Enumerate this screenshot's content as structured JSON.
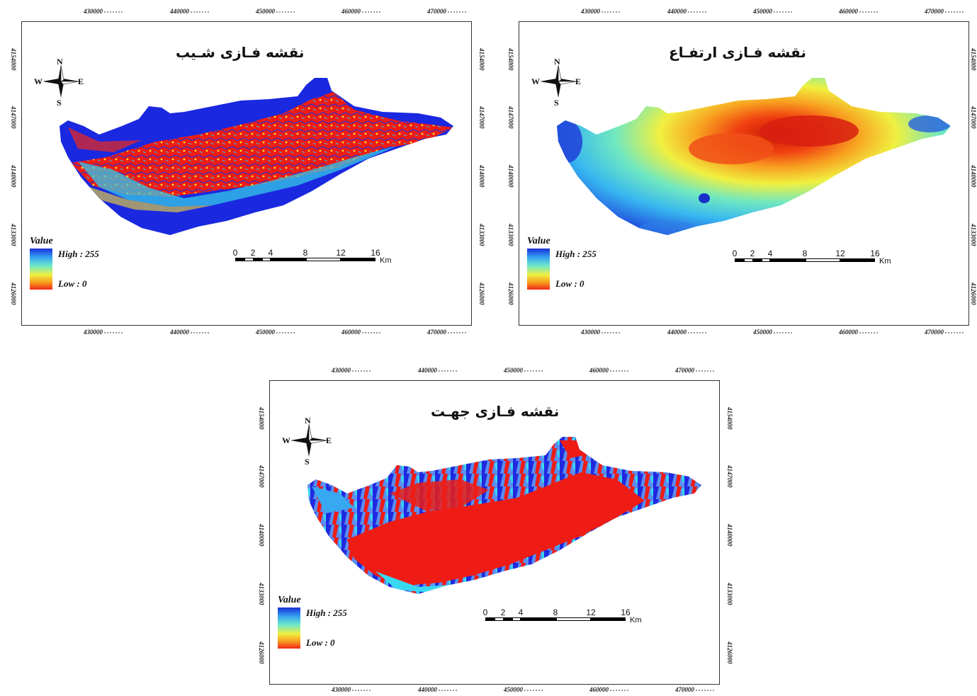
{
  "maps": [
    {
      "title": "نقشه فـازی شـیب",
      "type": "slope",
      "legend": {
        "title": "Value",
        "high": "High : 255",
        "low": "Low : 0"
      },
      "compass": {
        "n": "N",
        "s": "S",
        "e": "E",
        "w": "W"
      },
      "x_ticks": [
        "430000",
        "440000",
        "450000",
        "460000",
        "470000"
      ],
      "y_ticks": [
        "4154000",
        "4147000",
        "4140000",
        "4133000",
        "4126000"
      ],
      "scale": {
        "labels": [
          "0",
          "2",
          "4",
          "8",
          "12",
          "16"
        ],
        "unit": "Km"
      }
    },
    {
      "title": "نقشه فـازی ارتفـاع",
      "type": "elevation",
      "legend": {
        "title": "Value",
        "high": "High : 255",
        "low": "Low : 0"
      },
      "compass": {
        "n": "N",
        "s": "S",
        "e": "E",
        "w": "W"
      },
      "x_ticks": [
        "430000",
        "440000",
        "450000",
        "460000",
        "470000"
      ],
      "y_ticks": [
        "4154000",
        "4147000",
        "4140000",
        "4133000",
        "4126000"
      ],
      "scale": {
        "labels": [
          "0",
          "2",
          "4",
          "8",
          "12",
          "16"
        ],
        "unit": "Km"
      }
    },
    {
      "title": "نقشه فـازی جهـت",
      "type": "aspect",
      "legend": {
        "title": "Value",
        "high": "High : 255",
        "low": "Low : 0"
      },
      "compass": {
        "n": "N",
        "s": "S",
        "e": "E",
        "w": "W"
      },
      "x_ticks": [
        "430000",
        "440000",
        "450000",
        "460000",
        "470000"
      ],
      "y_ticks": [
        "4154000",
        "4147000",
        "4140000",
        "4133000",
        "4126000"
      ],
      "scale": {
        "labels": [
          "0",
          "2",
          "4",
          "8",
          "12",
          "16"
        ],
        "unit": "Km"
      }
    }
  ],
  "colors": {
    "high": "#1830d8",
    "mid": "#f0f040",
    "low": "#f02818"
  }
}
